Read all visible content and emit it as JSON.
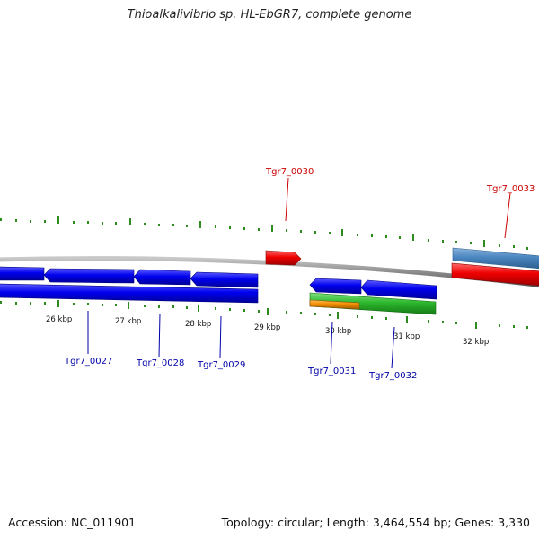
{
  "title": "Thioalkalivibrio sp. HL-EbGR7, complete genome",
  "footer": {
    "accession": "Accession: NC_011901",
    "topology": "Topology: circular; Length: 3,464,554 bp; Genes: 3,330"
  },
  "colors": {
    "backbone": "#8c8c8c",
    "ticks": "#2e8b1e",
    "gene_blue": "#0000ee",
    "gene_red": "#ee0000",
    "gene_steelblue": "#4a86c0",
    "gene_green": "#2db82d",
    "gene_orange": "#f08c00",
    "label_blue": "#0000aa",
    "label_red": "#cc0000"
  },
  "ruler_labels": [
    "26 kbp",
    "27 kbp",
    "28 kbp",
    "29 kbp",
    "30 kbp",
    "31 kbp",
    "32 kbp"
  ],
  "gene_labels": [
    {
      "name": "Tgr7_0027",
      "color": "blue"
    },
    {
      "name": "Tgr7_0028",
      "color": "blue"
    },
    {
      "name": "Tgr7_0029",
      "color": "blue"
    },
    {
      "name": "Tgr7_0030",
      "color": "red"
    },
    {
      "name": "Tgr7_0031",
      "color": "blue"
    },
    {
      "name": "Tgr7_0032",
      "color": "blue"
    },
    {
      "name": "Tgr7_0033",
      "color": "red"
    }
  ]
}
